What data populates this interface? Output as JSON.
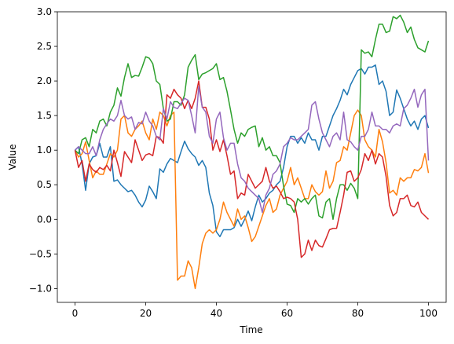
{
  "chart_data": {
    "type": "line",
    "xlabel": "Time",
    "ylabel": "Value",
    "x": [
      0,
      1,
      2,
      3,
      4,
      5,
      6,
      7,
      8,
      9,
      10,
      11,
      12,
      13,
      14,
      15,
      16,
      17,
      18,
      19,
      20,
      21,
      22,
      23,
      24,
      25,
      26,
      27,
      28,
      29,
      30,
      31,
      32,
      33,
      34,
      35,
      36,
      37,
      38,
      39,
      40,
      41,
      42,
      43,
      44,
      45,
      46,
      47,
      48,
      49,
      50,
      51,
      52,
      53,
      54,
      55,
      56,
      57,
      58,
      59,
      60,
      61,
      62,
      63,
      64,
      65,
      66,
      67,
      68,
      69,
      70,
      71,
      72,
      73,
      74,
      75,
      76,
      77,
      78,
      79,
      80,
      81,
      82,
      83,
      84,
      85,
      86,
      87,
      88,
      89,
      90,
      91,
      92,
      93,
      94,
      95,
      96,
      97,
      98,
      99,
      100
    ],
    "series": [
      {
        "color": "#1f77b4",
        "values": [
          1.0,
          1.05,
          0.8,
          0.42,
          0.8,
          0.9,
          0.92,
          1.1,
          0.9,
          0.9,
          1.05,
          0.55,
          0.57,
          0.5,
          0.45,
          0.4,
          0.42,
          0.35,
          0.25,
          0.18,
          0.28,
          0.48,
          0.4,
          0.3,
          0.73,
          0.68,
          0.8,
          0.88,
          0.85,
          0.82,
          0.98,
          1.13,
          1.02,
          0.95,
          0.9,
          0.78,
          0.85,
          0.75,
          0.38,
          0.2,
          -0.18,
          -0.25,
          -0.15,
          -0.15,
          -0.15,
          -0.12,
          0.0,
          -0.1,
          0.0,
          0.12,
          -0.02,
          0.18,
          0.35,
          0.25,
          0.3,
          0.38,
          0.42,
          0.5,
          0.55,
          0.75,
          1.05,
          1.2,
          1.2,
          1.1,
          1.18,
          1.1,
          1.25,
          1.15,
          1.15,
          1.0,
          1.2,
          1.2,
          1.35,
          1.5,
          1.6,
          1.72,
          1.88,
          1.8,
          1.95,
          2.05,
          2.15,
          2.18,
          2.1,
          2.2,
          2.2,
          2.23,
          1.95,
          2.0,
          1.85,
          1.5,
          1.55,
          1.87,
          1.75,
          1.6,
          1.45,
          1.35,
          1.42,
          1.3,
          1.45,
          1.5,
          1.32
        ]
      },
      {
        "color": "#ff7f0e",
        "values": [
          1.0,
          0.9,
          0.95,
          1.12,
          0.85,
          0.6,
          0.7,
          0.65,
          0.65,
          0.8,
          0.95,
          0.9,
          1.0,
          1.45,
          1.5,
          1.25,
          1.2,
          1.3,
          1.35,
          1.42,
          1.25,
          1.15,
          1.45,
          1.3,
          1.55,
          1.5,
          1.35,
          1.5,
          1.55,
          -0.88,
          -0.82,
          -0.82,
          -0.6,
          -0.7,
          -1.0,
          -0.7,
          -0.35,
          -0.2,
          -0.15,
          -0.2,
          -0.15,
          0.0,
          0.25,
          0.1,
          0.0,
          -0.1,
          0.15,
          0.0,
          0.05,
          -0.12,
          -0.32,
          -0.25,
          -0.1,
          0.05,
          0.2,
          0.3,
          0.1,
          0.15,
          0.35,
          0.45,
          0.55,
          0.75,
          0.5,
          0.6,
          0.45,
          0.3,
          0.3,
          0.5,
          0.4,
          0.35,
          0.4,
          0.7,
          0.45,
          0.55,
          0.82,
          0.85,
          1.05,
          1.0,
          1.25,
          1.5,
          1.58,
          1.5,
          1.15,
          1.05,
          1.0,
          0.9,
          1.3,
          1.12,
          0.82,
          0.38,
          0.42,
          0.35,
          0.6,
          0.55,
          0.6,
          0.6,
          0.72,
          0.7,
          0.75,
          0.95,
          0.67
        ]
      },
      {
        "color": "#2ca02c",
        "values": [
          1.0,
          0.95,
          1.15,
          1.18,
          1.05,
          1.3,
          1.25,
          1.42,
          1.45,
          1.35,
          1.55,
          1.65,
          1.9,
          1.78,
          2.05,
          2.25,
          2.05,
          2.08,
          2.07,
          2.2,
          2.35,
          2.33,
          2.25,
          2.0,
          1.95,
          1.6,
          1.42,
          1.45,
          1.7,
          1.7,
          1.65,
          1.8,
          2.2,
          2.3,
          2.38,
          2.02,
          2.1,
          2.12,
          2.15,
          2.18,
          2.25,
          2.02,
          2.05,
          1.85,
          1.58,
          1.3,
          1.1,
          1.25,
          1.2,
          1.3,
          1.33,
          1.35,
          1.05,
          1.18,
          1.0,
          1.05,
          0.92,
          0.92,
          0.82,
          0.48,
          0.22,
          0.2,
          0.1,
          0.3,
          0.25,
          0.3,
          0.22,
          0.3,
          0.35,
          0.05,
          0.02,
          0.25,
          0.3,
          0.0,
          0.3,
          0.5,
          0.5,
          0.42,
          0.52,
          0.45,
          0.3,
          2.45,
          2.4,
          2.42,
          2.35,
          2.6,
          2.82,
          2.82,
          2.7,
          2.72,
          2.93,
          2.9,
          2.95,
          2.85,
          2.7,
          2.78,
          2.6,
          2.48,
          2.45,
          2.42,
          2.58
        ]
      },
      {
        "color": "#d62728",
        "values": [
          1.0,
          0.75,
          0.85,
          0.55,
          0.8,
          0.72,
          0.68,
          0.75,
          0.72,
          0.78,
          0.7,
          1.0,
          0.82,
          0.62,
          0.98,
          0.9,
          0.82,
          1.15,
          1.0,
          0.85,
          0.93,
          0.95,
          0.92,
          1.2,
          1.18,
          1.1,
          1.8,
          1.75,
          1.88,
          1.8,
          1.75,
          1.6,
          1.72,
          1.6,
          1.75,
          2.0,
          1.62,
          1.62,
          1.45,
          1.0,
          1.15,
          0.98,
          1.15,
          0.92,
          0.65,
          0.7,
          0.3,
          0.38,
          0.35,
          0.65,
          0.55,
          0.45,
          0.5,
          0.55,
          0.75,
          0.55,
          0.45,
          0.48,
          0.4,
          0.3,
          0.32,
          0.3,
          0.25,
          0.0,
          -0.55,
          -0.5,
          -0.3,
          -0.45,
          -0.3,
          -0.38,
          -0.4,
          -0.28,
          -0.15,
          -0.13,
          -0.13,
          0.1,
          0.35,
          0.68,
          0.7,
          0.55,
          0.6,
          0.72,
          0.95,
          0.85,
          1.0,
          0.8,
          0.95,
          0.9,
          0.62,
          0.2,
          0.05,
          0.1,
          0.3,
          0.3,
          0.35,
          0.2,
          0.18,
          0.25,
          0.1,
          0.05,
          0.0
        ]
      },
      {
        "color": "#9467bd",
        "values": [
          1.0,
          1.05,
          1.0,
          0.95,
          0.95,
          1.05,
          0.92,
          1.15,
          1.3,
          1.38,
          1.45,
          1.42,
          1.5,
          1.72,
          1.5,
          1.45,
          1.48,
          1.3,
          1.4,
          1.38,
          1.55,
          1.42,
          1.35,
          1.2,
          1.15,
          1.6,
          1.45,
          1.7,
          1.62,
          1.6,
          1.68,
          1.75,
          1.72,
          1.5,
          1.25,
          1.92,
          1.62,
          1.55,
          1.2,
          1.1,
          1.45,
          1.55,
          1.18,
          1.0,
          1.1,
          1.1,
          0.8,
          0.6,
          0.55,
          0.45,
          0.4,
          0.35,
          0.3,
          0.1,
          0.35,
          0.45,
          0.65,
          0.7,
          0.8,
          1.05,
          1.1,
          1.18,
          1.15,
          1.15,
          1.2,
          1.25,
          1.3,
          1.65,
          1.7,
          1.45,
          1.25,
          1.15,
          1.05,
          1.2,
          1.25,
          1.15,
          1.55,
          1.15,
          1.12,
          1.05,
          1.0,
          1.2,
          1.2,
          1.3,
          1.55,
          1.35,
          1.35,
          1.3,
          1.3,
          1.25,
          1.35,
          1.38,
          1.35,
          1.6,
          1.65,
          1.75,
          1.88,
          1.62,
          1.8,
          1.88,
          0.85
        ]
      }
    ],
    "xlim": [
      -5,
      105
    ],
    "xticks": [
      0,
      20,
      40,
      60,
      80,
      100
    ],
    "ylim": [
      -1.2,
      3.0
    ],
    "yticks": [
      {
        "value": -1.0,
        "label": "−1.0"
      },
      {
        "value": -0.5,
        "label": "−0.5"
      },
      {
        "value": 0.0,
        "label": "0.0"
      },
      0.5,
      {
        "value": 1.0,
        "label": "1.0"
      },
      1.5,
      {
        "value": 2.0,
        "label": "2.0"
      },
      2.5,
      {
        "value": 3.0,
        "label": "3.0"
      }
    ],
    "grid": false
  }
}
